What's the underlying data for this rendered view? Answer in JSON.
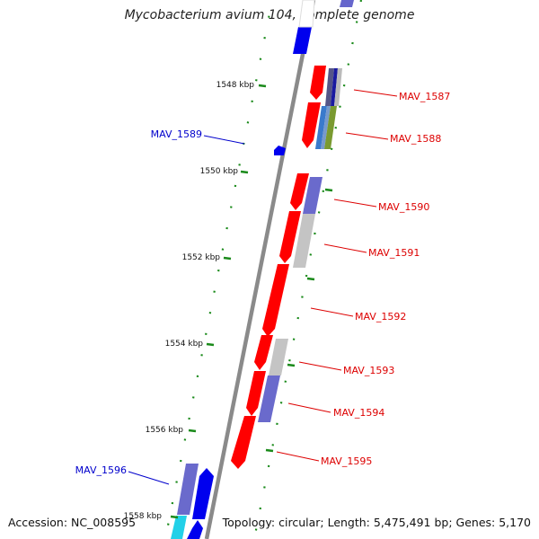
{
  "header": {
    "title": "Mycobacterium avium 104, complete genome"
  },
  "footer": {
    "accession": "Accession: NC_008595",
    "topology": "Topology: circular; Length: 5,475,491 bp; Genes: 5,170"
  },
  "colors": {
    "backbone": "#8a8a8a",
    "tick": "#1a8a1a",
    "forward_label": "#dd0000",
    "reverse_label": "#0000cc"
  },
  "scale": {
    "unit": "kbp",
    "ticks": [
      "1548 kbp",
      "1550 kbp",
      "1552 kbp",
      "1554 kbp",
      "1556 kbp",
      "1558 kbp"
    ]
  },
  "genes": [
    {
      "name": "MAV_1587",
      "strand": "forward"
    },
    {
      "name": "MAV_1588",
      "strand": "forward"
    },
    {
      "name": "MAV_1589",
      "strand": "reverse"
    },
    {
      "name": "MAV_1590",
      "strand": "forward"
    },
    {
      "name": "MAV_1591",
      "strand": "forward"
    },
    {
      "name": "MAV_1592",
      "strand": "forward"
    },
    {
      "name": "MAV_1593",
      "strand": "forward"
    },
    {
      "name": "MAV_1594",
      "strand": "forward"
    },
    {
      "name": "MAV_1595",
      "strand": "forward"
    },
    {
      "name": "MAV_1596",
      "strand": "reverse"
    }
  ]
}
